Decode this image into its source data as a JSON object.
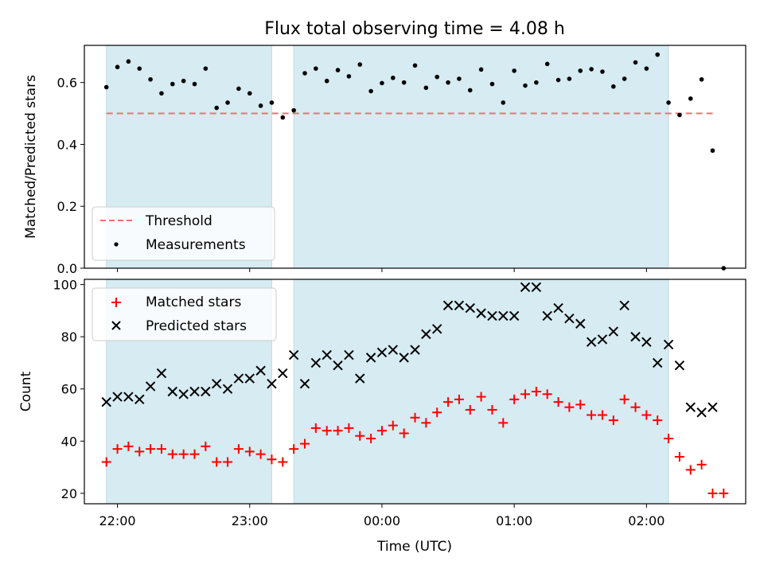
{
  "chart_data": [
    {
      "type": "scatter",
      "panel": "top",
      "title": "Flux total observing time = 4.08 h",
      "xlabel": "",
      "ylabel": "Matched/Predicted stars",
      "ylim": [
        0,
        0.72
      ],
      "yticks": [
        0.0,
        0.2,
        0.4,
        0.6
      ],
      "ytick_labels": [
        "0.0",
        "0.2",
        "0.4",
        "0.6"
      ],
      "x_unit": "minutes after 22:00 UTC",
      "threshold": {
        "name": "Threshold",
        "value": 0.5,
        "x_range": [
          -5,
          270
        ],
        "color": "#f07070"
      },
      "legend": {
        "placement": "lower-left",
        "entries": [
          "Threshold",
          "Measurements"
        ]
      },
      "shaded_intervals": [
        [
          -5,
          70
        ],
        [
          80,
          250
        ]
      ],
      "series": [
        {
          "name": "Measurements",
          "color": "#000000",
          "x": [
            -5,
            0,
            5,
            10,
            15,
            20,
            25,
            30,
            35,
            40,
            45,
            50,
            55,
            60,
            65,
            70,
            75,
            80,
            85,
            90,
            95,
            100,
            105,
            110,
            115,
            120,
            125,
            130,
            135,
            140,
            145,
            150,
            155,
            160,
            165,
            170,
            175,
            180,
            185,
            190,
            195,
            200,
            205,
            210,
            215,
            220,
            225,
            230,
            235,
            240,
            245,
            250,
            255,
            260,
            265,
            270,
            275
          ],
          "y": [
            0.585,
            0.65,
            0.668,
            0.645,
            0.61,
            0.565,
            0.595,
            0.605,
            0.595,
            0.645,
            0.518,
            0.535,
            0.58,
            0.565,
            0.525,
            0.535,
            0.487,
            0.51,
            0.63,
            0.645,
            0.605,
            0.64,
            0.62,
            0.658,
            0.572,
            0.598,
            0.615,
            0.6,
            0.655,
            0.583,
            0.618,
            0.6,
            0.612,
            0.575,
            0.642,
            0.595,
            0.535,
            0.638,
            0.59,
            0.6,
            0.66,
            0.608,
            0.612,
            0.638,
            0.643,
            0.635,
            0.587,
            0.612,
            0.665,
            0.645,
            0.69,
            0.535,
            0.495,
            0.548,
            0.61,
            0.38,
            0.0
          ]
        }
      ]
    },
    {
      "type": "scatter",
      "panel": "bottom",
      "title": "",
      "xlabel": "Time (UTC)",
      "ylabel": "Count",
      "ylim": [
        16,
        102
      ],
      "yticks": [
        20,
        40,
        60,
        80,
        100
      ],
      "ytick_labels": [
        "20",
        "40",
        "60",
        "80",
        "100"
      ],
      "xlim": [
        -15,
        285
      ],
      "xticks": [
        0,
        60,
        120,
        180,
        240
      ],
      "xtick_labels": [
        "22:00",
        "23:00",
        "00:00",
        "01:00",
        "02:00"
      ],
      "x_unit": "minutes after 22:00 UTC",
      "legend": {
        "placement": "upper-left",
        "entries": [
          "Matched stars",
          "Predicted stars"
        ]
      },
      "shaded_intervals": [
        [
          -5,
          70
        ],
        [
          80,
          250
        ]
      ],
      "series": [
        {
          "name": "Matched stars",
          "marker": "plus",
          "color": "#ff0000",
          "x": [
            -5,
            0,
            5,
            10,
            15,
            20,
            25,
            30,
            35,
            40,
            45,
            50,
            55,
            60,
            65,
            70,
            75,
            80,
            85,
            90,
            95,
            100,
            105,
            110,
            115,
            120,
            125,
            130,
            135,
            140,
            145,
            150,
            155,
            160,
            165,
            170,
            175,
            180,
            185,
            190,
            195,
            200,
            205,
            210,
            215,
            220,
            225,
            230,
            235,
            240,
            245,
            250,
            255,
            260,
            265,
            270,
            275
          ],
          "y": [
            32,
            37,
            38,
            36,
            37,
            37,
            35,
            35,
            35,
            38,
            32,
            32,
            37,
            36,
            35,
            33,
            32,
            37,
            39,
            45,
            44,
            44,
            45,
            42,
            41,
            44,
            46,
            43,
            49,
            47,
            51,
            55,
            56,
            52,
            57,
            52,
            47,
            56,
            58,
            59,
            58,
            55,
            53,
            54,
            50,
            50,
            48,
            56,
            53,
            50,
            48,
            41,
            34,
            29,
            31,
            20,
            20
          ]
        },
        {
          "name": "Predicted stars",
          "marker": "x",
          "color": "#000000",
          "x": [
            -5,
            0,
            5,
            10,
            15,
            20,
            25,
            30,
            35,
            40,
            45,
            50,
            55,
            60,
            65,
            70,
            75,
            80,
            85,
            90,
            95,
            100,
            105,
            110,
            115,
            120,
            125,
            130,
            135,
            140,
            145,
            150,
            155,
            160,
            165,
            170,
            175,
            180,
            185,
            190,
            195,
            200,
            205,
            210,
            215,
            220,
            225,
            230,
            235,
            240,
            245,
            250,
            255,
            260,
            265,
            270
          ],
          "y": [
            55,
            57,
            57,
            56,
            61,
            66,
            59,
            58,
            59,
            59,
            62,
            60,
            64,
            64,
            67,
            62,
            66,
            73,
            62,
            70,
            73,
            69,
            73,
            64,
            72,
            74,
            75,
            72,
            75,
            81,
            83,
            92,
            92,
            91,
            89,
            88,
            88,
            88,
            99,
            99,
            88,
            91,
            87,
            85,
            78,
            79,
            82,
            92,
            80,
            78,
            70,
            77,
            69,
            53,
            51,
            53
          ]
        }
      ]
    }
  ]
}
